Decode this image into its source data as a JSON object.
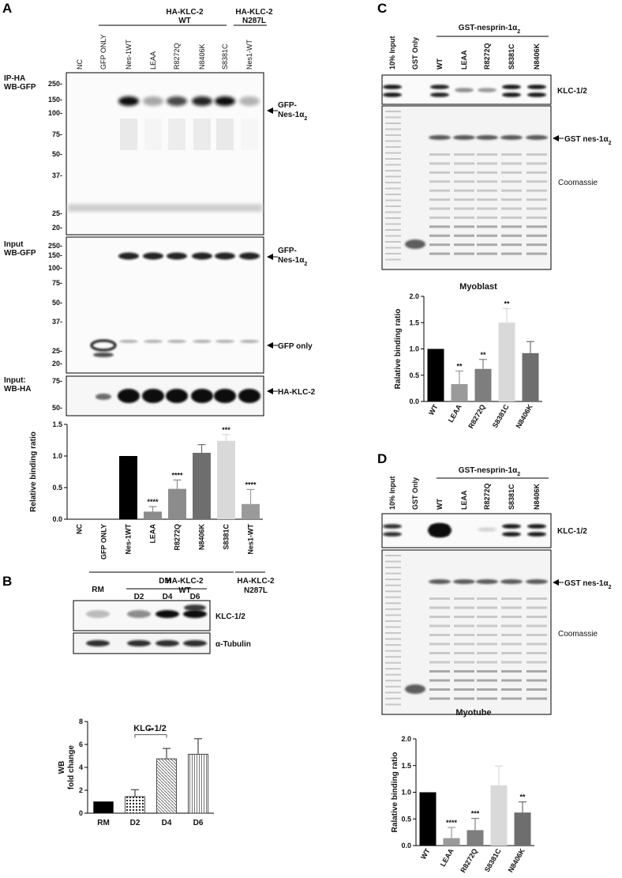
{
  "panels": {
    "A": {
      "label": "A",
      "header_wt": "HA-KLC-2\nWT",
      "header_mut": "HA-KLC-2\nN287L",
      "lanes": [
        "NC",
        "GFP ONLY",
        "Nes-1WT",
        "LEAA",
        "R8272Q",
        "N8406K",
        "S8381C",
        "Nes1-WT"
      ],
      "blot1": {
        "label": "IP-HA\nWB-GFP",
        "markers": [
          "250-",
          "150-",
          "100-",
          "75-",
          "50-",
          "37-",
          "25-",
          "20-"
        ],
        "annotation": "GFP-\nNes-1α2"
      },
      "blot2": {
        "label": "Input\nWB-GFP",
        "markers": [
          "250-",
          "150-",
          "100-",
          "75-",
          "50-",
          "37-",
          "25-",
          "20-"
        ],
        "annotation": "GFP-\nNes-1α2",
        "annotation2": "GFP only"
      },
      "blot3": {
        "label": "Input:\nWB-HA",
        "markers": [
          "75-",
          "50-"
        ],
        "annotation": "HA-KLC-2"
      },
      "chart_data": {
        "type": "bar",
        "ylabel": "Relative binding ratio",
        "categories": [
          "NC",
          "GFP ONLY",
          "Nes-1WT",
          "LEAA",
          "R8272Q",
          "N8406K",
          "S8381C",
          "Nes1-WT"
        ],
        "values": [
          0,
          0,
          1.0,
          0.12,
          0.48,
          1.05,
          1.24,
          0.24
        ],
        "errors": [
          0,
          0,
          0,
          0.08,
          0.14,
          0.13,
          0.1,
          0.23
        ],
        "significance": [
          "",
          "",
          "",
          "****",
          "****",
          "",
          "***",
          "****"
        ],
        "colors": [
          "#000000",
          "#000000",
          "#000000",
          "#8c8c8c",
          "#8c8c8c",
          "#6e6e6e",
          "#d9d9d9",
          "#9a9a9a"
        ],
        "ylim": [
          0,
          1.5
        ],
        "yticks": [
          "0.0",
          "0.5",
          "1.0",
          "1.5"
        ],
        "group_labels": [
          "HA-KLC-2\nWT",
          "HA-KLC-2\nN287L"
        ]
      }
    },
    "B": {
      "label": "B",
      "lanes": [
        "RM",
        "D2",
        "D4",
        "D6"
      ],
      "dm_label": "DM",
      "blot_labels": [
        "KLC-1/2",
        "α-Tubulin"
      ],
      "chart_data": {
        "type": "bar",
        "title": "KLC-1/2",
        "ylabel": "WB\nfold change",
        "categories": [
          "RM",
          "D2",
          "D4",
          "D6"
        ],
        "values": [
          1.0,
          1.45,
          4.75,
          5.15
        ],
        "errors": [
          0,
          0.6,
          0.9,
          1.35
        ],
        "ylim": [
          0,
          8
        ],
        "yticks": [
          "0",
          "2",
          "4",
          "6",
          "8"
        ],
        "significance_bracket": {
          "from": "D2",
          "to": "D4",
          "label": "**"
        }
      }
    },
    "C": {
      "label": "C",
      "header": "GST-nesprin-1α2",
      "lanes": [
        "10% Input",
        "GST Only",
        "WT",
        "LEAA",
        "R8272Q",
        "S8381C",
        "N8406K"
      ],
      "blot_label": "KLC-1/2",
      "gel_annotation": "GST nes-1α2",
      "gel_label": "Coomassie",
      "chart_data": {
        "type": "bar",
        "title": "Myoblast",
        "ylabel": "Ralative binding ratio",
        "categories": [
          "WT",
          "LEAA",
          "R8272Q",
          "S8381C",
          "N8406K"
        ],
        "values": [
          1.0,
          0.33,
          0.62,
          1.5,
          0.92
        ],
        "errors": [
          0,
          0.25,
          0.18,
          0.27,
          0.22
        ],
        "significance": [
          "",
          "**",
          "**",
          "**",
          ""
        ],
        "colors": [
          "#000000",
          "#9a9a9a",
          "#7e7e7e",
          "#d9d9d9",
          "#6e6e6e"
        ],
        "ylim": [
          0,
          2.0
        ],
        "yticks": [
          "0.0",
          "0.5",
          "1.0",
          "1.5",
          "2.0"
        ]
      }
    },
    "D": {
      "label": "D",
      "header": "GST-nesprin-1α2",
      "lanes": [
        "10% Input",
        "GST Only",
        "WT",
        "LEAA",
        "R8272Q",
        "S8381C",
        "N8406K"
      ],
      "blot_label": "KLC-1/2",
      "gel_annotation": "GST nes-1α2",
      "gel_label": "Coomassie",
      "chart_data": {
        "type": "bar",
        "title": "Myotube",
        "ylabel": "Ralative binding ratio",
        "categories": [
          "WT",
          "LEAA",
          "R8272Q",
          "S8381C",
          "N8406K"
        ],
        "values": [
          1.0,
          0.14,
          0.29,
          1.13,
          0.62
        ],
        "errors": [
          0,
          0.2,
          0.22,
          0.36,
          0.2
        ],
        "significance": [
          "",
          "****",
          "***",
          "",
          "**"
        ],
        "colors": [
          "#000000",
          "#9a9a9a",
          "#7e7e7e",
          "#d9d9d9",
          "#6e6e6e"
        ],
        "ylim": [
          0,
          2.0
        ],
        "yticks": [
          "0.0",
          "0.5",
          "1.0",
          "1.5",
          "2.0"
        ]
      }
    }
  }
}
